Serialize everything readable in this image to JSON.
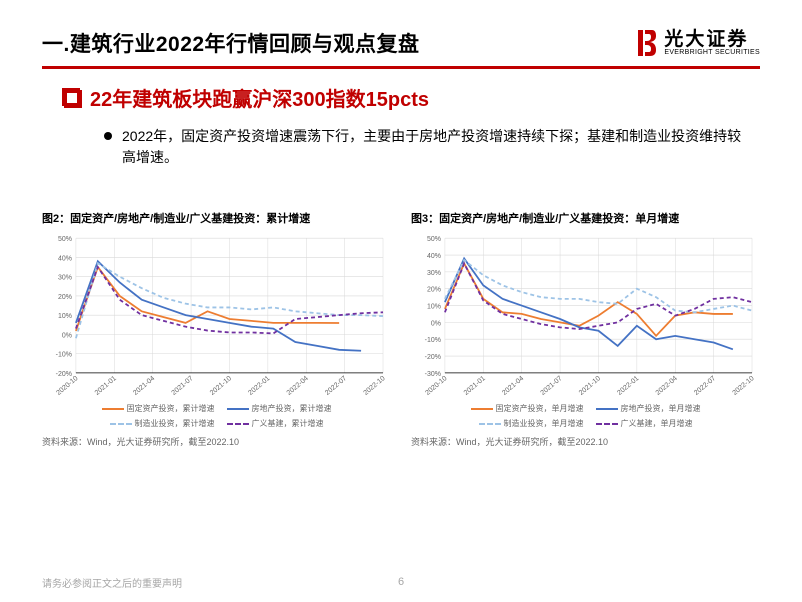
{
  "header": {
    "title": "一.建筑行业2022年行情回顾与观点复盘",
    "logo_cn": "光大证券",
    "logo_en": "EVERBRIGHT SECURITIES",
    "logo_color": "#c00000"
  },
  "subtitle": "22年建筑板块跑赢沪深300指数15pcts",
  "bullet": "2022年，固定资产投资增速震荡下行，主要由于房地产投资增速持续下探；基建和制造业投资维持较高增速。",
  "chart_common": {
    "x_labels": [
      "2020-10",
      "2021-01",
      "2021-04",
      "2021-07",
      "2021-10",
      "2022-01",
      "2022-04",
      "2022-07",
      "2022-10"
    ],
    "background_color": "#ffffff",
    "grid_color": "#d9d9d9",
    "axis_color": "#000000",
    "label_fontsize": 7,
    "legend_fontsize": 8
  },
  "chart_left": {
    "title": "图2：固定资产/房地产/制造业/广义基建投资：累计增速",
    "type": "line",
    "ylim": [
      -20,
      50
    ],
    "ytick_step": 10,
    "ytick_format": "percent",
    "series": [
      {
        "name": "固定资产投资，累计增速",
        "color": "#ed7d31",
        "dash": "solid",
        "width": 1.8,
        "values": [
          1.8,
          35,
          20,
          12,
          9,
          6,
          12,
          8,
          7,
          6,
          6,
          6,
          5.9
        ]
      },
      {
        "name": "房地产投资，累计增速",
        "color": "#4472c4",
        "dash": "solid",
        "width": 1.8,
        "values": [
          6,
          38,
          27,
          18,
          14,
          10,
          8,
          6,
          4,
          3,
          -4,
          -6,
          -8,
          -8.5
        ]
      },
      {
        "name": "制造业投资，累计增速",
        "color": "#9dc3e6",
        "dash": "dashed",
        "width": 1.8,
        "values": [
          -2,
          37,
          30,
          24,
          19,
          16,
          14,
          14,
          13,
          14,
          12,
          11,
          10,
          10,
          9.5
        ]
      },
      {
        "name": "广义基建，累计增速",
        "color": "#7030a0",
        "dash": "dashed",
        "width": 1.8,
        "values": [
          3,
          35,
          18,
          10,
          7,
          4,
          2,
          1,
          1,
          0.5,
          8,
          9,
          10,
          11,
          11.5
        ]
      }
    ],
    "credit": "资料来源：Wind，光大证券研究所，截至2022.10"
  },
  "chart_right": {
    "title": "图3：固定资产/房地产/制造业/广义基建投资：单月增速",
    "type": "line",
    "ylim": [
      -30,
      50
    ],
    "ytick_step": 10,
    "ytick_format": "percent",
    "series": [
      {
        "name": "固定资产投资，单月增速",
        "color": "#ed7d31",
        "dash": "solid",
        "width": 1.8,
        "values": [
          8,
          35,
          14,
          6,
          5,
          2,
          0,
          -2,
          4,
          12,
          5,
          -8,
          4,
          6,
          5,
          5
        ]
      },
      {
        "name": "房地产投资，单月增速",
        "color": "#4472c4",
        "dash": "solid",
        "width": 1.8,
        "values": [
          12,
          38,
          22,
          14,
          10,
          6,
          2,
          -3,
          -5,
          -14,
          -2,
          -10,
          -8,
          -10,
          -12,
          -16
        ]
      },
      {
        "name": "制造业投资，单月增速",
        "color": "#9dc3e6",
        "dash": "dashed",
        "width": 1.8,
        "values": [
          14,
          37,
          28,
          22,
          18,
          15,
          14,
          14,
          12,
          11,
          20,
          15,
          7,
          6,
          8,
          10,
          7
        ]
      },
      {
        "name": "广义基建，单月增速",
        "color": "#7030a0",
        "dash": "dashed",
        "width": 1.8,
        "values": [
          6,
          35,
          13,
          5,
          2,
          -1,
          -3,
          -4,
          -2,
          0,
          8,
          11,
          4,
          8,
          14,
          15,
          12
        ]
      }
    ],
    "credit": "资料来源：Wind，光大证券研究所，截至2022.10"
  },
  "footer": {
    "note": "请务必参阅正文之后的重要声明",
    "page": "6"
  }
}
